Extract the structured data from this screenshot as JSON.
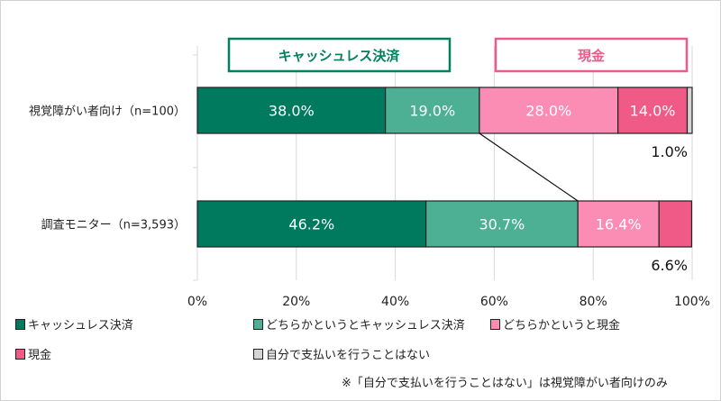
{
  "chart_data": {
    "type": "bar",
    "orientation": "horizontal-stacked-100",
    "categories": [
      "視覚障がい者向け（n=100）",
      "調査モニター（n=3,593）"
    ],
    "series": [
      {
        "name": "キャッシュレス決済",
        "color": "#007a5e",
        "values": [
          38.0,
          46.2
        ],
        "labels": [
          "38.0%",
          "46.2%"
        ]
      },
      {
        "name": "どちらかというとキャッシュレス決済",
        "color": "#4daf94",
        "values": [
          19.0,
          30.7
        ],
        "labels": [
          "19.0%",
          "30.7%"
        ]
      },
      {
        "name": "どちらかというと現金",
        "color": "#fb8db4",
        "values": [
          28.0,
          16.4
        ],
        "labels": [
          "28.0%",
          "16.4%"
        ]
      },
      {
        "name": "現金",
        "color": "#f05a86",
        "values": [
          14.0,
          6.6
        ],
        "labels": [
          "14.0%",
          "6.6%"
        ]
      },
      {
        "name": "自分で支払いを行うことはない",
        "color": "#d4d4d4",
        "values": [
          1.0,
          0
        ],
        "labels": [
          "1.0%",
          ""
        ]
      }
    ],
    "xlim": [
      0,
      100
    ],
    "xticks": [
      "0%",
      "20%",
      "40%",
      "60%",
      "80%",
      "100%"
    ],
    "grid": true,
    "group_labels": {
      "cashless": "キャッシュレス決済",
      "cash": "現金"
    },
    "legend_position": "bottom",
    "note": "※「自分で支払いを行うことはない」は視覚障がい者向けのみ"
  }
}
